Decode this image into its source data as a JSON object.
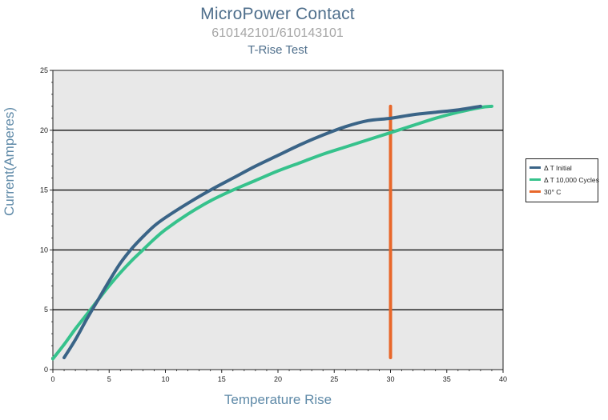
{
  "chart_data": {
    "type": "line",
    "title": "MicroPower Contact",
    "subtitle": "610142101/610143101",
    "subtitle2": "T-Rise Test",
    "xlabel": "Temperature Rise",
    "ylabel": "Current(Amperes)",
    "xlim": [
      0,
      40
    ],
    "ylim": [
      0,
      25
    ],
    "xticks": [
      "0",
      "5",
      "10",
      "15",
      "20",
      "25",
      "30",
      "35",
      "40"
    ],
    "yticks": [
      "0",
      "5",
      "10",
      "15",
      "20",
      "25"
    ],
    "grid": "horizontal",
    "legend_position": "right",
    "series": [
      {
        "name": "Δ T Initial",
        "color": "#3a6487",
        "x": [
          1,
          2,
          3,
          4,
          5,
          6,
          7,
          8,
          9,
          10,
          12,
          14,
          16,
          18,
          20,
          22,
          24,
          26,
          28,
          30,
          32,
          34,
          36,
          38
        ],
        "y": [
          1,
          2.5,
          4.2,
          5.8,
          7.4,
          8.9,
          10.1,
          11.1,
          12.0,
          12.7,
          13.9,
          15.0,
          16.0,
          17.0,
          17.9,
          18.8,
          19.6,
          20.3,
          20.8,
          21.0,
          21.3,
          21.5,
          21.7,
          22.0
        ]
      },
      {
        "name": "Δ T 10,000 Cycles",
        "color": "#36c28c",
        "x": [
          0,
          1,
          2,
          3,
          4,
          5,
          6,
          7,
          8,
          9,
          10,
          12,
          14,
          16,
          18,
          20,
          22,
          24,
          26,
          28,
          30,
          32,
          34,
          36,
          38,
          39
        ],
        "y": [
          0.9,
          2.1,
          3.4,
          4.6,
          5.8,
          7.0,
          8.1,
          9.1,
          10.0,
          10.9,
          11.7,
          13.0,
          14.1,
          15.0,
          15.8,
          16.6,
          17.3,
          18.0,
          18.6,
          19.2,
          19.8,
          20.4,
          21.0,
          21.5,
          21.9,
          22.0
        ]
      },
      {
        "name": "30° C",
        "color": "#e8672a",
        "x": [
          30,
          30
        ],
        "y": [
          1,
          22
        ]
      }
    ]
  }
}
